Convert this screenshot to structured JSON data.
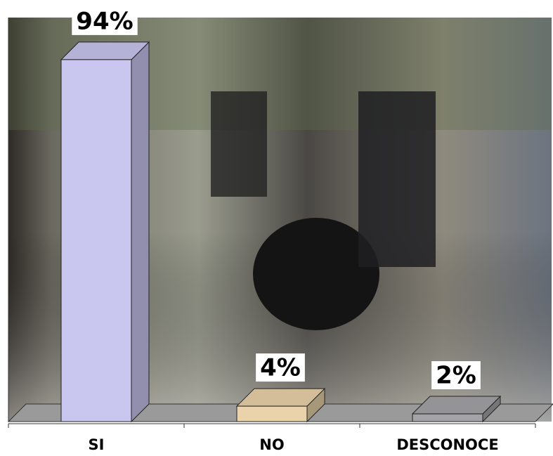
{
  "chart_data": {
    "type": "bar3d",
    "categories": [
      "SI",
      "NO",
      "DESCONOCE"
    ],
    "values": [
      94,
      4,
      2
    ],
    "value_labels": [
      "94%",
      "4%",
      "2%"
    ],
    "colors": [
      "#c9c6f0",
      "#ead3aa",
      "#a4a4a8"
    ],
    "ylim": [
      0,
      100
    ]
  }
}
